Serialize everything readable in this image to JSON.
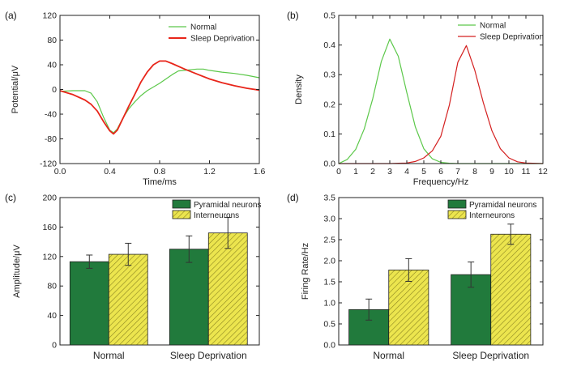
{
  "chart_data": [
    {
      "panel": "(a)",
      "type": "line",
      "xlabel": "Time/ms",
      "ylabel": "Potential/μV",
      "xlim": [
        0.0,
        1.6
      ],
      "ylim": [
        -120,
        120
      ],
      "xticks": [
        "0.0",
        "0.4",
        "0.8",
        "1.2",
        "1.6"
      ],
      "yticks": [
        "-120",
        "-80",
        "-40",
        "0",
        "40",
        "80",
        "120"
      ],
      "legend_position": "top-right",
      "series": [
        {
          "name": "Normal",
          "color": "#5cc84a",
          "x": [
            0.0,
            0.1,
            0.2,
            0.25,
            0.3,
            0.35,
            0.4,
            0.43,
            0.46,
            0.5,
            0.55,
            0.6,
            0.65,
            0.7,
            0.8,
            0.9,
            0.95,
            1.0,
            1.1,
            1.15,
            1.2,
            1.3,
            1.4,
            1.5,
            1.6
          ],
          "y": [
            -3,
            -2,
            -2,
            -6,
            -20,
            -45,
            -66,
            -70,
            -64,
            -48,
            -32,
            -20,
            -10,
            -2,
            10,
            24,
            30,
            31,
            33,
            33,
            31,
            28,
            26,
            23,
            19
          ]
        },
        {
          "name": "Sleep Deprivation",
          "color": "#e8251a",
          "x": [
            0.0,
            0.1,
            0.2,
            0.25,
            0.3,
            0.35,
            0.4,
            0.43,
            0.46,
            0.5,
            0.55,
            0.6,
            0.65,
            0.7,
            0.75,
            0.8,
            0.85,
            0.9,
            1.0,
            1.1,
            1.2,
            1.3,
            1.4,
            1.5,
            1.6
          ],
          "y": [
            -2,
            -8,
            -17,
            -24,
            -35,
            -52,
            -67,
            -72,
            -66,
            -49,
            -28,
            -8,
            12,
            28,
            40,
            46,
            46,
            42,
            33,
            25,
            17,
            11,
            6,
            2,
            -1
          ]
        }
      ]
    },
    {
      "panel": "(b)",
      "type": "line",
      "xlabel": "Frequency/Hz",
      "ylabel": "Density",
      "xlim": [
        0,
        12
      ],
      "ylim": [
        0.0,
        0.5
      ],
      "xticks": [
        "0",
        "1",
        "2",
        "3",
        "4",
        "5",
        "6",
        "7",
        "8",
        "9",
        "10",
        "11",
        "12"
      ],
      "yticks": [
        "0.0",
        "0.1",
        "0.2",
        "0.3",
        "0.4",
        "0.5"
      ],
      "legend_position": "top-right",
      "series": [
        {
          "name": "Normal",
          "color": "#5cc84a",
          "x": [
            0,
            0.5,
            1,
            1.5,
            2,
            2.5,
            3,
            3.5,
            4,
            4.5,
            5,
            5.5,
            6,
            6.5,
            7,
            8,
            9,
            10,
            11,
            12
          ],
          "y": [
            0.0,
            0.014,
            0.048,
            0.117,
            0.219,
            0.344,
            0.42,
            0.362,
            0.24,
            0.124,
            0.05,
            0.016,
            0.004,
            0.001,
            0.0,
            0.0,
            0.0,
            0.0,
            0.0,
            0.0
          ]
        },
        {
          "name": "Sleep Deprivation",
          "color": "#d42020",
          "x": [
            0,
            2,
            3,
            3.5,
            4,
            4.5,
            5,
            5.5,
            6,
            6.5,
            7,
            7.5,
            8,
            8.5,
            9,
            9.5,
            10,
            10.5,
            11,
            12
          ],
          "y": [
            0.0,
            0.0,
            0.0,
            0.001,
            0.002,
            0.007,
            0.019,
            0.043,
            0.092,
            0.197,
            0.342,
            0.398,
            0.314,
            0.205,
            0.111,
            0.05,
            0.019,
            0.006,
            0.002,
            0.0
          ]
        }
      ]
    },
    {
      "panel": "(c)",
      "type": "bar",
      "categories": [
        "Normal",
        "Sleep Deprivation"
      ],
      "ylabel": "Amplitude/μV",
      "ylim": [
        0,
        200
      ],
      "yticks": [
        "0",
        "40",
        "80",
        "120",
        "160",
        "200"
      ],
      "legend_position": "top-right",
      "series": [
        {
          "name": "Pyramidal neurons",
          "color": "#217a3c",
          "values": [
            113,
            130
          ],
          "errors": [
            9,
            18
          ]
        },
        {
          "name": "Interneurons",
          "color": "#e6e04a",
          "pattern": "hatched",
          "values": [
            123,
            152
          ],
          "errors": [
            15,
            21
          ]
        }
      ]
    },
    {
      "panel": "(d)",
      "type": "bar",
      "categories": [
        "Normal",
        "Sleep Deprivation"
      ],
      "ylabel": "Firing Rate/Hz",
      "ylim": [
        0.0,
        3.5
      ],
      "yticks": [
        "0.0",
        "0.5",
        "1.0",
        "1.5",
        "2.0",
        "2.5",
        "3.0",
        "3.5"
      ],
      "legend_position": "top-right",
      "series": [
        {
          "name": "Pyramidal neurons",
          "color": "#217a3c",
          "values": [
            0.84,
            1.67
          ],
          "errors": [
            0.25,
            0.3
          ]
        },
        {
          "name": "Interneurons",
          "color": "#e6e04a",
          "pattern": "hatched",
          "values": [
            1.78,
            2.63
          ],
          "errors": [
            0.27,
            0.24
          ]
        }
      ]
    }
  ]
}
